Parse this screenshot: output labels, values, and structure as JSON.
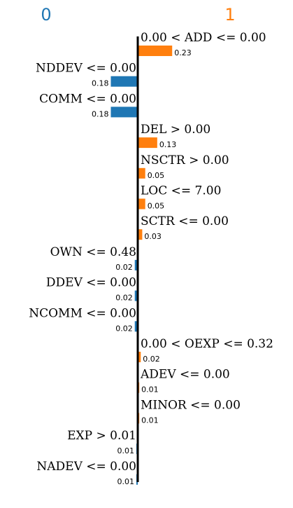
{
  "chart_data": {
    "type": "bar",
    "orientation": "horizontal-diverging",
    "classes": {
      "negative": {
        "label": "0",
        "color": "#1f77b4"
      },
      "positive": {
        "label": "1",
        "color": "#ff7f0e"
      }
    },
    "features": [
      {
        "label": "0.00 < ADD <= 0.00",
        "value": 0.23,
        "value_label": "0.23",
        "class": "positive"
      },
      {
        "label": "NDDEV <= 0.00",
        "value": 0.18,
        "value_label": "0.18",
        "class": "negative"
      },
      {
        "label": "COMM <= 0.00",
        "value": 0.18,
        "value_label": "0.18",
        "class": "negative"
      },
      {
        "label": "DEL > 0.00",
        "value": 0.13,
        "value_label": "0.13",
        "class": "positive"
      },
      {
        "label": "NSCTR > 0.00",
        "value": 0.05,
        "value_label": "0.05",
        "class": "positive"
      },
      {
        "label": "LOC <= 7.00",
        "value": 0.05,
        "value_label": "0.05",
        "class": "positive"
      },
      {
        "label": "SCTR <= 0.00",
        "value": 0.03,
        "value_label": "0.03",
        "class": "positive"
      },
      {
        "label": "OWN <= 0.48",
        "value": 0.02,
        "value_label": "0.02",
        "class": "negative"
      },
      {
        "label": "DDEV <= 0.00",
        "value": 0.02,
        "value_label": "0.02",
        "class": "negative"
      },
      {
        "label": "NCOMM <= 0.00",
        "value": 0.02,
        "value_label": "0.02",
        "class": "negative"
      },
      {
        "label": "0.00 < OEXP <= 0.32",
        "value": 0.02,
        "value_label": "0.02",
        "class": "positive"
      },
      {
        "label": "ADEV <= 0.00",
        "value": 0.01,
        "value_label": "0.01",
        "class": "positive"
      },
      {
        "label": "MINOR <= 0.00",
        "value": 0.01,
        "value_label": "0.01",
        "class": "positive"
      },
      {
        "label": "EXP > 0.01",
        "value": 0.005,
        "value_label": "0.01",
        "class": "negative"
      },
      {
        "label": "NADEV <= 0.00",
        "value": 0.005,
        "value_label": "0.01",
        "class": "negative"
      }
    ]
  }
}
